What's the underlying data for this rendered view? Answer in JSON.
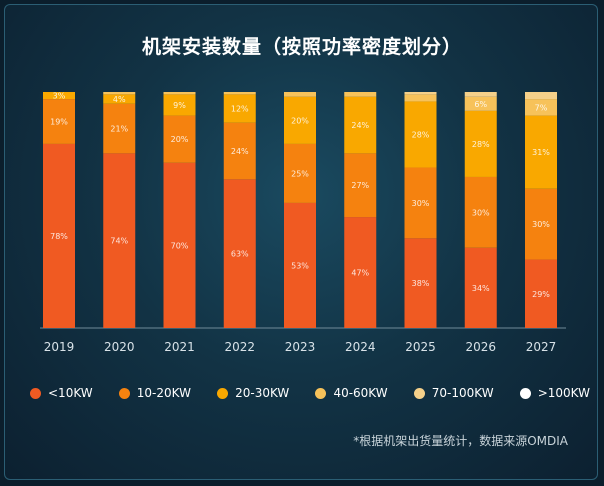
{
  "chart_data": {
    "type": "bar",
    "stacked": true,
    "title": "机架安装数量（按照功率密度划分）",
    "categories": [
      "2019",
      "2020",
      "2021",
      "2022",
      "2023",
      "2024",
      "2025",
      "2026",
      "2027"
    ],
    "ylim": [
      0,
      100
    ],
    "series": [
      {
        "name": "<10KW",
        "color": "#f05a22",
        "values": [
          78,
          74,
          70,
          63,
          53,
          47,
          38,
          34,
          29
        ]
      },
      {
        "name": "10-20KW",
        "color": "#f5820f",
        "values": [
          19,
          21,
          20,
          24,
          25,
          27,
          30,
          30,
          30
        ]
      },
      {
        "name": "20-30KW",
        "color": "#f9a800",
        "values": [
          3,
          4,
          9,
          12,
          20,
          24,
          28,
          28,
          31
        ]
      },
      {
        "name": "40-60KW",
        "color": "#f7c25a",
        "values": [
          0,
          1,
          1,
          1,
          2,
          2,
          3,
          6,
          7
        ]
      },
      {
        "name": "70-100KW",
        "color": "#f5d08a",
        "values": [
          0,
          0,
          0,
          0,
          0,
          0,
          1,
          2,
          3
        ]
      },
      {
        "name": ">100KW",
        "color": "#ffffff",
        "values": [
          0,
          0,
          0,
          0,
          0,
          0,
          0,
          0,
          0
        ]
      }
    ],
    "labels": [
      [
        "78%",
        "19%",
        "3%"
      ],
      [
        "74%",
        "21%",
        "4%"
      ],
      [
        "70%",
        "20%",
        "9%"
      ],
      [
        "63%",
        "24%",
        "12%"
      ],
      [
        "53%",
        "25%",
        "20%"
      ],
      [
        "47%",
        "27%",
        "24%"
      ],
      [
        "38%",
        "30%",
        "28%"
      ],
      [
        "34%",
        "30%",
        "28%",
        "6%"
      ],
      [
        "29%",
        "30%",
        "31%",
        "7%"
      ]
    ],
    "footnote": "*根据机架出货量统计，数据来源OMDIA"
  }
}
